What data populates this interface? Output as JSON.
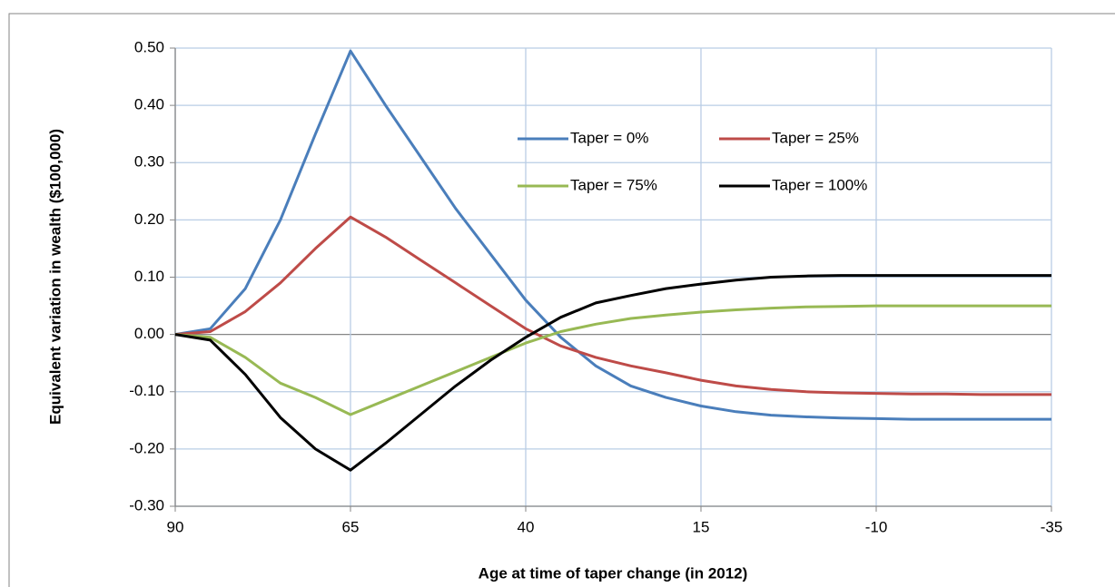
{
  "chart_data": {
    "type": "line",
    "x_label": "Age at time of taper change (in 2012)",
    "y_label": "Equivalent variation in wealth ($100,000)",
    "x": [
      90,
      85,
      80,
      75,
      70,
      65,
      60,
      55,
      50,
      45,
      40,
      35,
      30,
      25,
      20,
      15,
      10,
      5,
      0,
      -5,
      -10,
      -15,
      -20,
      -25,
      -30,
      -35
    ],
    "xlim": [
      90,
      -35
    ],
    "xticks": [
      90,
      65,
      40,
      15,
      -10,
      -35
    ],
    "ylim": [
      -0.3,
      0.5
    ],
    "yticks": [
      {
        "value": -0.3,
        "label": "-0.30"
      },
      {
        "value": -0.2,
        "label": "-0.20"
      },
      {
        "value": -0.1,
        "label": "-0.10"
      },
      {
        "value": 0,
        "label": "0.00"
      },
      {
        "value": 0.1,
        "label": "0.10"
      },
      {
        "value": 0.2,
        "label": "0.20"
      },
      {
        "value": 0.3,
        "label": "0.30"
      },
      {
        "value": 0.4,
        "label": "0.40"
      },
      {
        "value": 0.5,
        "label": "0.50"
      }
    ],
    "grid": true,
    "series": [
      {
        "name": "Taper = 0%",
        "color": "#4a7ebb",
        "values": [
          0,
          0.01,
          0.08,
          0.2,
          0.35,
          0.495,
          0.4,
          0.31,
          0.22,
          0.14,
          0.06,
          -0.005,
          -0.055,
          -0.09,
          -0.11,
          -0.125,
          -0.135,
          -0.141,
          -0.144,
          -0.146,
          -0.147,
          -0.148,
          -0.148,
          -0.148,
          -0.148,
          -0.148
        ]
      },
      {
        "name": "Taper = 25%",
        "color": "#be4b48",
        "values": [
          0,
          0.005,
          0.04,
          0.09,
          0.15,
          0.205,
          0.17,
          0.13,
          0.09,
          0.05,
          0.01,
          -0.02,
          -0.04,
          -0.055,
          -0.067,
          -0.08,
          -0.09,
          -0.096,
          -0.1,
          -0.102,
          -0.103,
          -0.104,
          -0.104,
          -0.105,
          -0.105,
          -0.105
        ]
      },
      {
        "name": "Taper = 75%",
        "color": "#98b954",
        "values": [
          0,
          -0.005,
          -0.04,
          -0.085,
          -0.11,
          -0.14,
          -0.115,
          -0.09,
          -0.065,
          -0.04,
          -0.015,
          0.005,
          0.018,
          0.028,
          0.034,
          0.039,
          0.043,
          0.046,
          0.048,
          0.049,
          0.05,
          0.05,
          0.05,
          0.05,
          0.05,
          0.05
        ]
      },
      {
        "name": "Taper = 100%",
        "color": "#000000",
        "values": [
          0,
          -0.01,
          -0.07,
          -0.145,
          -0.2,
          -0.237,
          -0.19,
          -0.14,
          -0.09,
          -0.045,
          -0.005,
          0.03,
          0.055,
          0.068,
          0.08,
          0.088,
          0.095,
          0.1,
          0.102,
          0.103,
          0.103,
          0.103,
          0.103,
          0.103,
          0.103,
          0.103
        ]
      }
    ]
  }
}
